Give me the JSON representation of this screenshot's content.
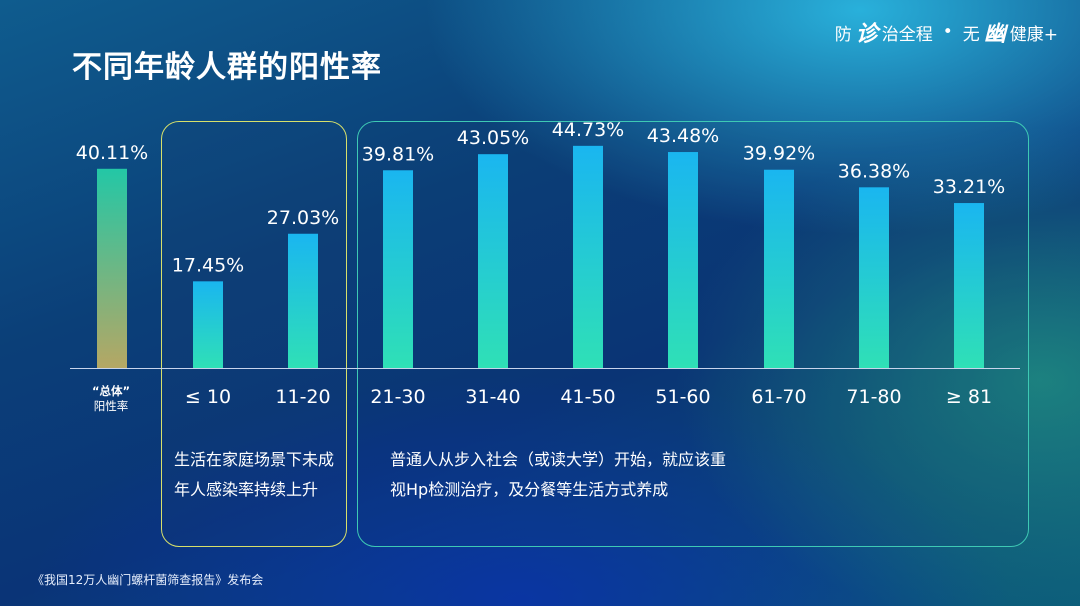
{
  "header": {
    "title": "不同年龄人群的阳性率",
    "brand": {
      "part1": "防",
      "glyph1": "诊",
      "part2": "治全程",
      "dot": "•",
      "part3": "无",
      "glyph2": "幽",
      "part4": "健康+"
    }
  },
  "chart_data": {
    "type": "bar",
    "categories": [
      "“总体”阳性率",
      "≤ 10",
      "11-20",
      "21-30",
      "31-40",
      "41-50",
      "51-60",
      "61-70",
      "71-80",
      "≥ 81"
    ],
    "values": [
      40.11,
      17.45,
      27.03,
      39.81,
      43.05,
      44.73,
      43.48,
      39.92,
      36.38,
      33.21
    ],
    "data_labels": [
      "40.11%",
      "17.45%",
      "27.03%",
      "39.81%",
      "43.05%",
      "44.73%",
      "43.48%",
      "39.92%",
      "36.38%",
      "33.21%"
    ],
    "title": "不同年龄人群的阳性率",
    "ylim": [
      0,
      60
    ],
    "grid": false,
    "colors": {
      "overall_top": "#23c7a6",
      "overall_bottom": "#b5a764",
      "bar_top": "#1ab6f0",
      "bar_bottom": "#2fe0b6",
      "axis": "#c8d4ec"
    }
  },
  "overall_label": {
    "line1": "“总体”",
    "line2": "阳性率"
  },
  "notes": {
    "young": "生活在家庭场景下未成年人感染率持续上升",
    "adult": "普通人从步入社会（或读大学）开始，就应该重视Hp检测治疗，及分餐等生活方式养成"
  },
  "footer": {
    "source": "《我国12万人幽门螺杆菌筛查报告》发布会"
  }
}
